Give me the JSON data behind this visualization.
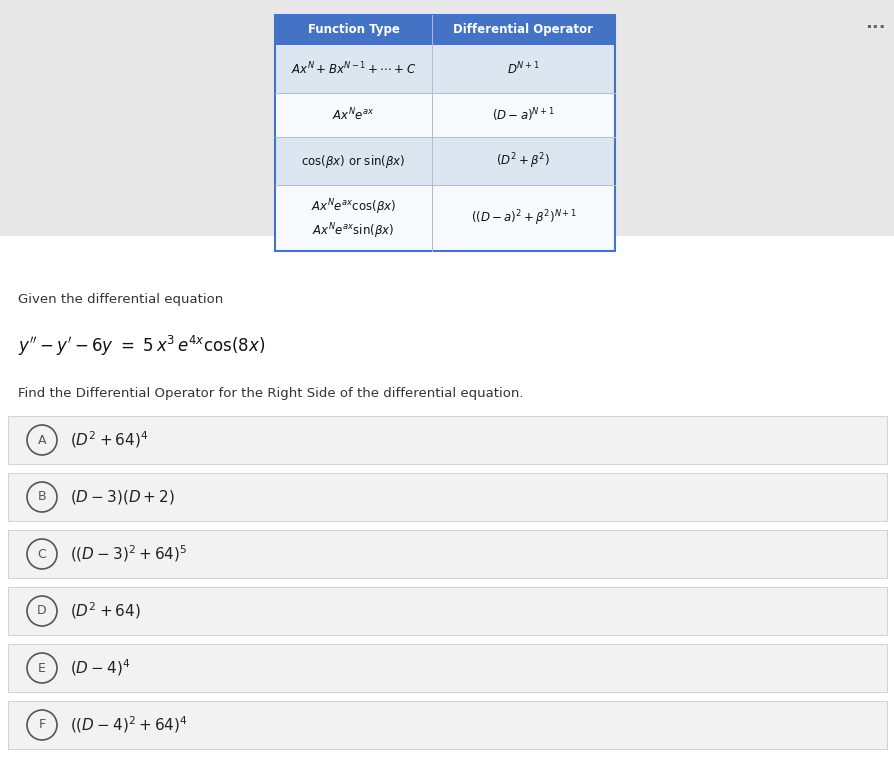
{
  "bg_color": "#e8e8e8",
  "table_header_bg": "#4472c4",
  "table_row_bg_light": "#dce6f1",
  "table_row_bg_white": "#f8f9fc",
  "table_header_text_color": "#ffffff",
  "table_body_text_color": "#111111",
  "table_rows": [
    {
      "func": "$Ax^N + Bx^{N-1} + \\cdots + C$",
      "op": "$D^{N+1}$",
      "bg": "#dce6f1"
    },
    {
      "func": "$Ax^Ne^{ax}$",
      "op": "$(D - a)^{N+1}$",
      "bg": "#f8f9fc"
    },
    {
      "func": "$\\cos(\\beta x)$ or $\\sin(\\beta x)$",
      "op": "$(D^2 + \\beta^2)$",
      "bg": "#dce6f1"
    },
    {
      "func2a": "$Ax^Ne^{ax}\\cos(\\beta x)$",
      "func2b": "$Ax^Ne^{ax}\\sin(\\beta x)$",
      "op": "$((D - a)^2 + \\beta^2)^{N+1}$",
      "bg": "#f8f9fc"
    }
  ],
  "dots_color": "#666666",
  "given_text": "Given the differential equation",
  "equation": "$y'' - y' - 6y \\ = \\ 5\\,x^3\\,e^{4x}\\cos\\!\\left(8x\\right)$",
  "find_text": "Find the Differential Operator for the Right Side of the differential equation.",
  "choices": [
    {
      "label": "A",
      "expr": "$(D^2 + 64)^4$"
    },
    {
      "label": "B",
      "expr": "$(D - 3)(D + 2)$"
    },
    {
      "label": "C",
      "expr": "$((D - 3)^2 + 64)^5$"
    },
    {
      "label": "D",
      "expr": "$(D^2 + 64)$"
    },
    {
      "label": "E",
      "expr": "$(D - 4)^4$"
    },
    {
      "label": "F",
      "expr": "$((D - 4)^2 + 64)^4$"
    }
  ],
  "choice_bg": "#f2f2f2",
  "choice_border": "#cccccc",
  "circle_color": "#555555",
  "choice_text_color": "#222222"
}
